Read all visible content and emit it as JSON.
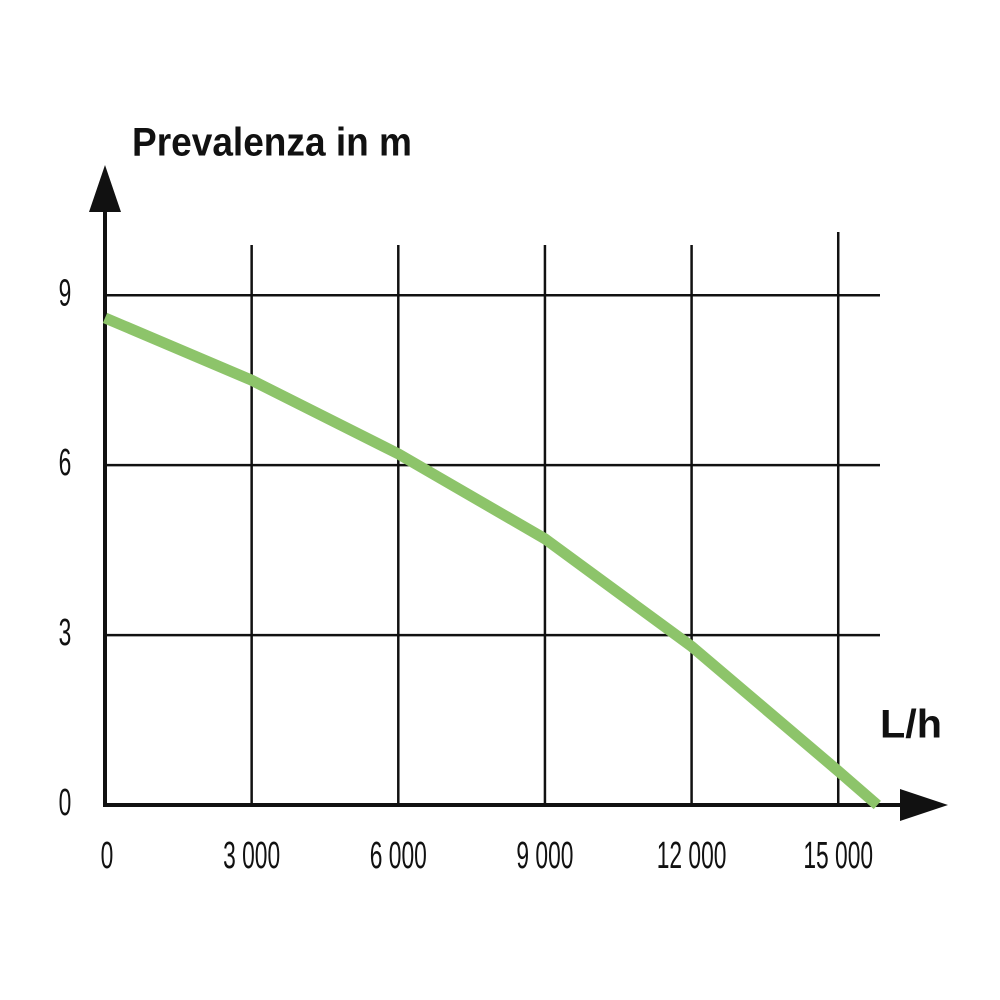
{
  "chart_data": {
    "type": "line",
    "y_label": "Prevalenza in m",
    "x_label": "L/h",
    "x": [
      0,
      3000,
      6000,
      9000,
      12000,
      15000,
      15800
    ],
    "series": [
      {
        "color": "#8dc46a",
        "values": [
          8.6,
          7.5,
          6.2,
          4.7,
          2.8,
          0.6,
          0
        ]
      }
    ],
    "xlim": [
      0,
      17000
    ],
    "ylim": [
      0,
      11
    ],
    "xticks": [
      0,
      {
        "value": 3000,
        "label": "3 000"
      },
      {
        "value": 6000,
        "label": "6 000"
      },
      {
        "value": 9000,
        "label": "9 000"
      },
      {
        "value": 12000,
        "label": "12 000"
      },
      {
        "value": 15000,
        "label": "15 000"
      }
    ],
    "yticks": [
      0,
      3,
      6,
      9
    ],
    "grid": true
  }
}
